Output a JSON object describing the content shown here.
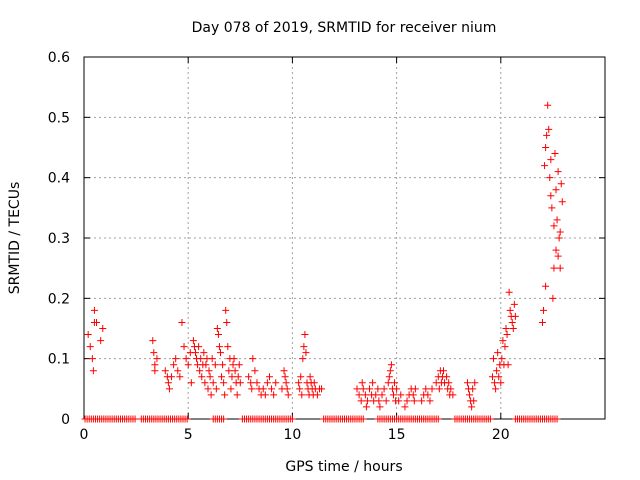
{
  "chart_data": {
    "type": "scatter",
    "title": "Day 078 of 2019, SRMTID for receiver nium",
    "xlabel": "GPS time / hours",
    "ylabel": "SRMTID / TECUs",
    "xlim": [
      0,
      25
    ],
    "ylim": [
      0,
      0.6
    ],
    "xticks": [
      0,
      5,
      10,
      15,
      20
    ],
    "xtick_labels": [
      "0",
      "5",
      "10",
      "15",
      "20"
    ],
    "yticks": [
      0,
      0.1,
      0.2,
      0.3,
      0.4,
      0.5,
      0.6
    ],
    "ytick_labels": [
      "0",
      "0.1",
      "0.2",
      "0.3",
      "0.4",
      "0.5",
      "0.6"
    ],
    "grid": true,
    "marker": "+",
    "series": [
      {
        "name": "SRMTID",
        "color": "#ff0000",
        "points": [
          [
            0.2,
            0.14
          ],
          [
            0.3,
            0.12
          ],
          [
            0.4,
            0.1
          ],
          [
            0.45,
            0.08
          ],
          [
            0.5,
            0.16
          ],
          [
            0.5,
            0.18
          ],
          [
            0.6,
            0.16
          ],
          [
            0.8,
            0.13
          ],
          [
            0.9,
            0.15
          ],
          [
            3.3,
            0.13
          ],
          [
            3.35,
            0.11
          ],
          [
            3.4,
            0.09
          ],
          [
            3.4,
            0.08
          ],
          [
            3.5,
            0.1
          ],
          [
            3.9,
            0.08
          ],
          [
            4.0,
            0.07
          ],
          [
            4.05,
            0.06
          ],
          [
            4.1,
            0.05
          ],
          [
            4.2,
            0.07
          ],
          [
            4.3,
            0.09
          ],
          [
            4.4,
            0.1
          ],
          [
            4.5,
            0.08
          ],
          [
            4.6,
            0.07
          ],
          [
            4.7,
            0.16
          ],
          [
            4.8,
            0.12
          ],
          [
            4.9,
            0.1
          ],
          [
            5.0,
            0.09
          ],
          [
            5.1,
            0.11
          ],
          [
            5.15,
            0.06
          ],
          [
            5.25,
            0.13
          ],
          [
            5.3,
            0.12
          ],
          [
            5.35,
            0.11
          ],
          [
            5.4,
            0.1
          ],
          [
            5.45,
            0.09
          ],
          [
            5.5,
            0.12
          ],
          [
            5.55,
            0.08
          ],
          [
            5.6,
            0.1
          ],
          [
            5.65,
            0.07
          ],
          [
            5.7,
            0.09
          ],
          [
            5.75,
            0.11
          ],
          [
            5.8,
            0.06
          ],
          [
            5.85,
            0.09
          ],
          [
            5.9,
            0.1
          ],
          [
            5.95,
            0.05
          ],
          [
            6.0,
            0.08
          ],
          [
            6.05,
            0.07
          ],
          [
            6.1,
            0.04
          ],
          [
            6.15,
            0.1
          ],
          [
            6.2,
            0.06
          ],
          [
            6.3,
            0.09
          ],
          [
            6.35,
            0.05
          ],
          [
            6.4,
            0.15
          ],
          [
            6.45,
            0.14
          ],
          [
            6.5,
            0.12
          ],
          [
            6.55,
            0.11
          ],
          [
            6.6,
            0.07
          ],
          [
            6.65,
            0.09
          ],
          [
            6.7,
            0.06
          ],
          [
            6.75,
            0.04
          ],
          [
            6.8,
            0.18
          ],
          [
            6.85,
            0.16
          ],
          [
            6.9,
            0.12
          ],
          [
            6.95,
            0.08
          ],
          [
            7.0,
            0.1
          ],
          [
            7.05,
            0.05
          ],
          [
            7.1,
            0.07
          ],
          [
            7.15,
            0.09
          ],
          [
            7.2,
            0.1
          ],
          [
            7.25,
            0.08
          ],
          [
            7.3,
            0.06
          ],
          [
            7.35,
            0.04
          ],
          [
            7.4,
            0.07
          ],
          [
            7.45,
            0.09
          ],
          [
            7.5,
            0.06
          ],
          [
            7.9,
            0.07
          ],
          [
            8.0,
            0.06
          ],
          [
            8.05,
            0.05
          ],
          [
            8.1,
            0.1
          ],
          [
            8.2,
            0.08
          ],
          [
            8.3,
            0.06
          ],
          [
            8.4,
            0.05
          ],
          [
            8.5,
            0.04
          ],
          [
            8.6,
            0.05
          ],
          [
            8.7,
            0.04
          ],
          [
            8.8,
            0.06
          ],
          [
            8.9,
            0.07
          ],
          [
            9.0,
            0.05
          ],
          [
            9.1,
            0.04
          ],
          [
            9.2,
            0.06
          ],
          [
            9.5,
            0.05
          ],
          [
            9.6,
            0.08
          ],
          [
            9.65,
            0.07
          ],
          [
            9.7,
            0.06
          ],
          [
            9.75,
            0.05
          ],
          [
            9.8,
            0.04
          ],
          [
            10.3,
            0.06
          ],
          [
            10.35,
            0.05
          ],
          [
            10.4,
            0.07
          ],
          [
            10.45,
            0.04
          ],
          [
            10.5,
            0.1
          ],
          [
            10.55,
            0.12
          ],
          [
            10.6,
            0.14
          ],
          [
            10.65,
            0.11
          ],
          [
            10.7,
            0.06
          ],
          [
            10.75,
            0.05
          ],
          [
            10.8,
            0.04
          ],
          [
            10.85,
            0.07
          ],
          [
            10.9,
            0.06
          ],
          [
            10.95,
            0.05
          ],
          [
            11.0,
            0.04
          ],
          [
            11.05,
            0.06
          ],
          [
            11.1,
            0.05
          ],
          [
            11.2,
            0.04
          ],
          [
            11.3,
            0.05
          ],
          [
            11.4,
            0.05
          ],
          [
            13.1,
            0.05
          ],
          [
            13.2,
            0.04
          ],
          [
            13.3,
            0.03
          ],
          [
            13.35,
            0.06
          ],
          [
            13.4,
            0.05
          ],
          [
            13.5,
            0.04
          ],
          [
            13.55,
            0.02
          ],
          [
            13.6,
            0.03
          ],
          [
            13.7,
            0.05
          ],
          [
            13.8,
            0.04
          ],
          [
            13.85,
            0.06
          ],
          [
            13.9,
            0.03
          ],
          [
            14.0,
            0.04
          ],
          [
            14.1,
            0.05
          ],
          [
            14.15,
            0.03
          ],
          [
            14.2,
            0.02
          ],
          [
            14.3,
            0.04
          ],
          [
            14.4,
            0.05
          ],
          [
            14.5,
            0.03
          ],
          [
            14.6,
            0.06
          ],
          [
            14.65,
            0.07
          ],
          [
            14.7,
            0.08
          ],
          [
            14.75,
            0.09
          ],
          [
            14.8,
            0.05
          ],
          [
            14.85,
            0.04
          ],
          [
            14.9,
            0.06
          ],
          [
            14.95,
            0.03
          ],
          [
            15.0,
            0.05
          ],
          [
            15.1,
            0.03
          ],
          [
            15.2,
            0.04
          ],
          [
            15.4,
            0.02
          ],
          [
            15.5,
            0.03
          ],
          [
            15.6,
            0.04
          ],
          [
            15.7,
            0.05
          ],
          [
            15.8,
            0.04
          ],
          [
            15.85,
            0.03
          ],
          [
            15.9,
            0.05
          ],
          [
            16.2,
            0.03
          ],
          [
            16.3,
            0.04
          ],
          [
            16.4,
            0.05
          ],
          [
            16.5,
            0.04
          ],
          [
            16.6,
            0.03
          ],
          [
            16.7,
            0.05
          ],
          [
            16.9,
            0.06
          ],
          [
            17.0,
            0.07
          ],
          [
            17.05,
            0.05
          ],
          [
            17.1,
            0.08
          ],
          [
            17.15,
            0.06
          ],
          [
            17.2,
            0.07
          ],
          [
            17.25,
            0.08
          ],
          [
            17.3,
            0.06
          ],
          [
            17.4,
            0.07
          ],
          [
            17.45,
            0.05
          ],
          [
            17.5,
            0.06
          ],
          [
            17.55,
            0.04
          ],
          [
            17.6,
            0.05
          ],
          [
            17.7,
            0.04
          ],
          [
            18.4,
            0.06
          ],
          [
            18.45,
            0.05
          ],
          [
            18.5,
            0.04
          ],
          [
            18.55,
            0.03
          ],
          [
            18.6,
            0.02
          ],
          [
            18.65,
            0.05
          ],
          [
            18.7,
            0.03
          ],
          [
            18.75,
            0.06
          ],
          [
            19.6,
            0.07
          ],
          [
            19.65,
            0.1
          ],
          [
            19.7,
            0.06
          ],
          [
            19.75,
            0.05
          ],
          [
            19.8,
            0.08
          ],
          [
            19.85,
            0.11
          ],
          [
            19.9,
            0.07
          ],
          [
            19.95,
            0.09
          ],
          [
            20.0,
            0.06
          ],
          [
            20.05,
            0.1
          ],
          [
            20.1,
            0.13
          ],
          [
            20.15,
            0.09
          ],
          [
            20.2,
            0.12
          ],
          [
            20.25,
            0.15
          ],
          [
            20.3,
            0.14
          ],
          [
            20.35,
            0.09
          ],
          [
            20.4,
            0.21
          ],
          [
            20.45,
            0.18
          ],
          [
            20.5,
            0.17
          ],
          [
            20.55,
            0.16
          ],
          [
            20.6,
            0.15
          ],
          [
            20.65,
            0.19
          ],
          [
            20.7,
            0.17
          ],
          [
            22.0,
            0.16
          ],
          [
            22.05,
            0.18
          ],
          [
            22.1,
            0.42
          ],
          [
            22.15,
            0.45
          ],
          [
            22.2,
            0.47
          ],
          [
            22.25,
            0.52
          ],
          [
            22.3,
            0.48
          ],
          [
            22.35,
            0.4
          ],
          [
            22.4,
            0.37
          ],
          [
            22.45,
            0.35
          ],
          [
            22.5,
            0.2
          ],
          [
            22.55,
            0.32
          ],
          [
            22.6,
            0.44
          ],
          [
            22.65,
            0.28
          ],
          [
            22.7,
            0.33
          ],
          [
            22.75,
            0.27
          ],
          [
            22.8,
            0.3
          ],
          [
            22.85,
            0.25
          ],
          [
            22.9,
            0.39
          ],
          [
            22.95,
            0.36
          ],
          [
            22.15,
            0.22
          ],
          [
            22.4,
            0.43
          ],
          [
            22.55,
            0.25
          ],
          [
            22.65,
            0.38
          ],
          [
            22.75,
            0.41
          ],
          [
            22.85,
            0.31
          ]
        ],
        "zero_marks": [
          0.05,
          0.15,
          0.25,
          0.35,
          0.45,
          0.55,
          0.65,
          0.75,
          0.85,
          0.95,
          1.05,
          1.15,
          1.25,
          1.35,
          1.45,
          1.55,
          1.65,
          1.75,
          1.85,
          1.95,
          2.05,
          2.15,
          2.25,
          2.35,
          2.45,
          2.75,
          2.85,
          2.95,
          3.05,
          3.15,
          3.25,
          3.35,
          3.45,
          3.55,
          3.65,
          3.75,
          3.85,
          3.95,
          4.05,
          4.15,
          4.25,
          4.35,
          4.45,
          4.55,
          4.65,
          4.75,
          4.85,
          4.95,
          6.2,
          6.3,
          6.4,
          6.5,
          6.6,
          6.7,
          7.6,
          7.7,
          7.8,
          7.9,
          8.0,
          8.1,
          8.2,
          8.3,
          8.4,
          8.5,
          8.6,
          8.7,
          8.8,
          8.9,
          9.0,
          9.1,
          9.2,
          9.3,
          9.4,
          9.5,
          9.6,
          9.7,
          9.8,
          9.9,
          10.0,
          11.5,
          11.6,
          11.7,
          11.8,
          11.9,
          12.0,
          12.1,
          12.2,
          12.3,
          12.4,
          12.5,
          12.6,
          12.7,
          12.8,
          12.9,
          13.0,
          13.1,
          13.2,
          13.3,
          13.4,
          14.1,
          14.2,
          14.3,
          14.4,
          14.5,
          14.6,
          14.7,
          14.8,
          14.9,
          15.0,
          15.1,
          15.2,
          15.3,
          15.4,
          15.5,
          15.6,
          15.7,
          15.8,
          15.9,
          16.0,
          16.1,
          16.2,
          16.3,
          16.4,
          16.5,
          16.6,
          16.7,
          16.8,
          16.9,
          17.0,
          17.8,
          17.9,
          18.0,
          18.1,
          18.2,
          18.3,
          18.4,
          18.5,
          18.6,
          18.7,
          18.8,
          18.9,
          19.0,
          19.1,
          19.2,
          19.3,
          19.4,
          19.5,
          20.7,
          20.8,
          20.9,
          21.0,
          21.1,
          21.2,
          21.3,
          21.4,
          21.5,
          21.6,
          21.7,
          21.8,
          21.9,
          22.0,
          22.1,
          22.2,
          22.3,
          22.4,
          22.5,
          22.6,
          22.7
        ]
      }
    ]
  }
}
